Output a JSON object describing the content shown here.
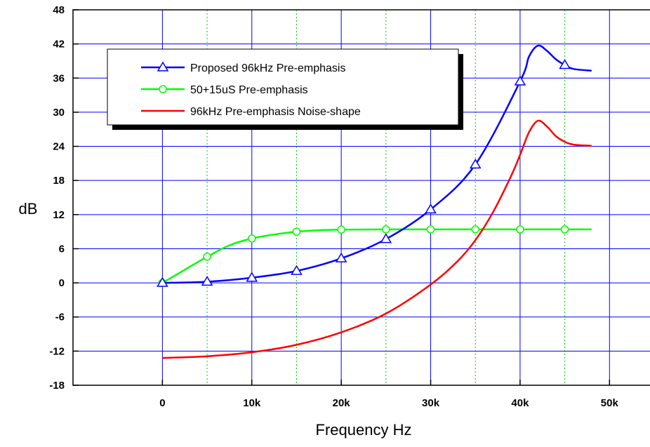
{
  "chart_data": {
    "type": "line",
    "xlabel": "Frequency Hz",
    "ylabel": "dB",
    "xlim": [
      -10000,
      55000
    ],
    "ylim": [
      -18,
      48
    ],
    "x_ticks": [
      0,
      10000,
      20000,
      30000,
      40000,
      50000
    ],
    "x_tick_labels": [
      "0",
      "10k",
      "20k",
      "30k",
      "40k",
      "50k"
    ],
    "y_ticks": [
      -18,
      -12,
      -6,
      0,
      6,
      12,
      18,
      24,
      30,
      36,
      42,
      48
    ],
    "y_tick_labels": [
      "-18",
      "-12",
      "-6",
      "0",
      "6",
      "12",
      "18",
      "24",
      "30",
      "36",
      "42",
      "48"
    ],
    "grid": true,
    "legend_position": "top-left",
    "series": [
      {
        "name": "Proposed 96kHz Pre-emphasis",
        "color": "#0000ff",
        "marker": "triangle",
        "x": [
          0,
          5000,
          10000,
          15000,
          20000,
          25000,
          30000,
          35000,
          40000,
          41000,
          42000,
          43000,
          44000,
          45000,
          46000,
          48000
        ],
        "y": [
          0,
          0.2,
          0.9,
          2.1,
          4.3,
          7.7,
          12.9,
          20.8,
          35.4,
          39.8,
          41.7,
          40.8,
          39.3,
          38.3,
          37.6,
          37.3
        ],
        "marker_x": [
          0,
          5000,
          10000,
          15000,
          20000,
          25000,
          30000,
          35000,
          40000,
          45000
        ]
      },
      {
        "name": "50+15uS Pre-emphasis",
        "color": "#00ff00",
        "marker": "circle",
        "x": [
          0,
          2500,
          5000,
          7500,
          10000,
          12500,
          15000,
          17500,
          20000,
          25000,
          30000,
          35000,
          40000,
          45000,
          48000
        ],
        "y": [
          0,
          2.3,
          4.6,
          6.6,
          7.8,
          8.5,
          9.0,
          9.25,
          9.35,
          9.4,
          9.4,
          9.4,
          9.4,
          9.4,
          9.4
        ],
        "marker_x": [
          0,
          5000,
          10000,
          15000,
          20000,
          25000,
          30000,
          35000,
          40000,
          45000
        ]
      },
      {
        "name": "96kHz Pre-emphasis Noise-shape",
        "color": "#ff0000",
        "marker": "none",
        "x": [
          0,
          5000,
          10000,
          15000,
          20000,
          25000,
          30000,
          33000,
          35000,
          37000,
          39000,
          40000,
          41000,
          42000,
          43000,
          44000,
          45000,
          46000,
          48000
        ],
        "y": [
          -13.2,
          -12.9,
          -12.2,
          -10.9,
          -8.7,
          -5.4,
          -0.3,
          3.8,
          7.5,
          12.5,
          18.8,
          22.5,
          26.5,
          28.5,
          27.5,
          25.8,
          24.8,
          24.3,
          24.1
        ],
        "marker_x": []
      }
    ]
  }
}
